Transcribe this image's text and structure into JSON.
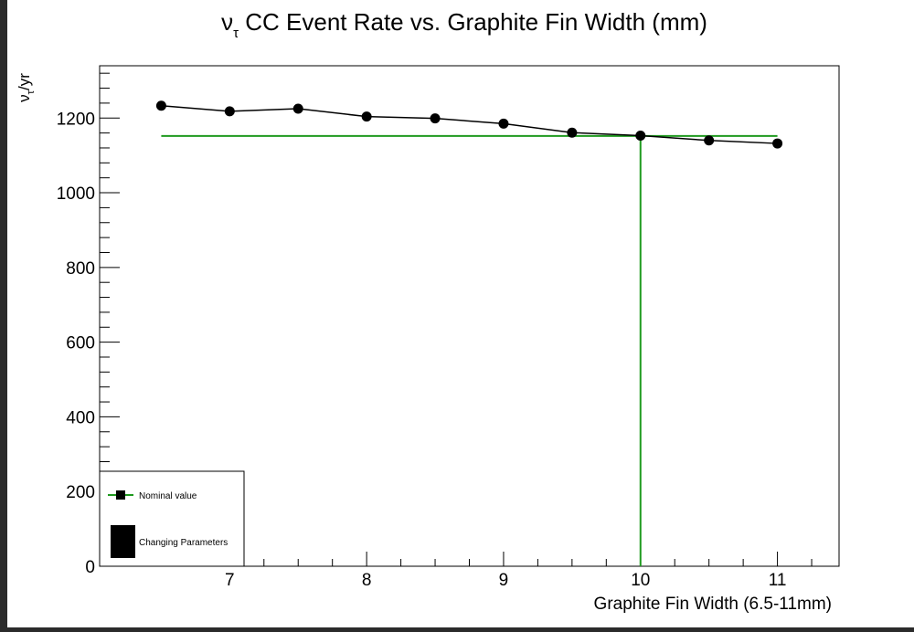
{
  "chart_data": {
    "type": "line",
    "title": {
      "nu": "ν",
      "sub": "τ",
      "rest": " CC Event Rate vs. Graphite Fin Width (mm)"
    },
    "ylabel": {
      "nu": "ν",
      "sub": "τ",
      "rest": "/yr"
    },
    "xlabel": "Graphite Fin Width (6.5-11mm)",
    "xlim": [
      6.05,
      11.45
    ],
    "ylim": [
      0,
      1340
    ],
    "x_ticks": [
      7,
      8,
      9,
      10,
      11
    ],
    "x_tick_labels": [
      "7",
      "8",
      "9",
      "10",
      "11"
    ],
    "y_ticks": [
      0,
      200,
      400,
      600,
      800,
      1000,
      1200
    ],
    "y_tick_labels": [
      "0",
      "200",
      "400",
      "600",
      "800",
      "1000",
      "1200"
    ],
    "series": [
      {
        "name": "Changing Parameters",
        "color": "#000000",
        "x": [
          6.5,
          7.0,
          7.5,
          8.0,
          8.5,
          9.0,
          9.5,
          10.0,
          10.5,
          11.0
        ],
        "y": [
          1233,
          1218,
          1225,
          1204,
          1199,
          1185,
          1161,
          1153,
          1140,
          1132
        ]
      }
    ],
    "nominal": {
      "name": "Nominal value",
      "color": "#1f9a1f",
      "x": 10.0,
      "y": 1152,
      "x_range": [
        6.5,
        11.0
      ]
    },
    "legend": {
      "placement": "bottom-left",
      "entries": [
        "Nominal value",
        "Changing Parameters"
      ]
    },
    "grid": false
  }
}
